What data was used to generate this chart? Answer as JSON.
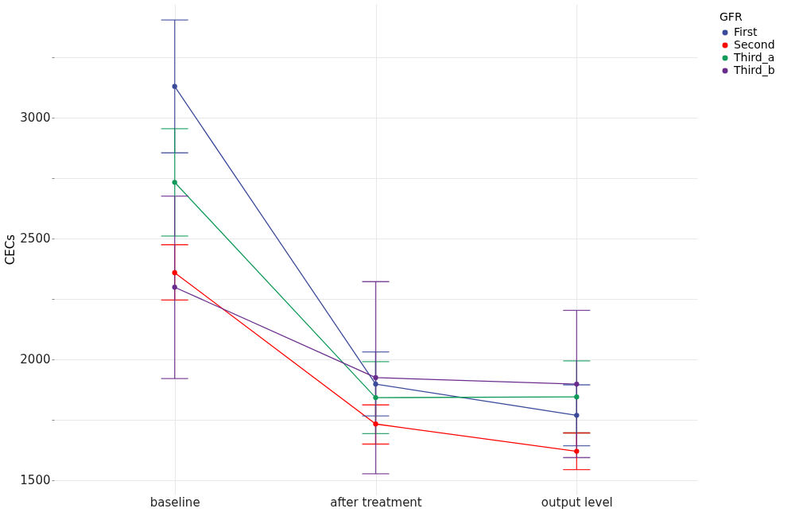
{
  "chart_data": {
    "type": "line",
    "ylabel": "CECs",
    "legend_title": "GFR",
    "categories": [
      "baseline",
      "after treatment",
      "output level"
    ],
    "series": [
      {
        "name": "First",
        "color": "#3b4a9a",
        "values": [
          3129,
          1897,
          1768
        ],
        "errors": [
          [
            2854,
            3404
          ],
          [
            1765,
            2030
          ],
          [
            1642,
            1894
          ]
        ]
      },
      {
        "name": "Second",
        "color": "#ff0000",
        "values": [
          2358,
          1732,
          1619
        ],
        "errors": [
          [
            2245,
            2474
          ],
          [
            1649,
            1811
          ],
          [
            1543,
            1695
          ]
        ]
      },
      {
        "name": "Third_a",
        "color": "#119a5a",
        "values": [
          2732,
          1841,
          1844
        ],
        "errors": [
          [
            2510,
            2954
          ],
          [
            1692,
            1990
          ],
          [
            1695,
            1993
          ]
        ]
      },
      {
        "name": "Third_b",
        "color": "#6a2c8c",
        "values": [
          2298,
          1924,
          1897
        ],
        "errors": [
          [
            1920,
            2675
          ],
          [
            1526,
            2321
          ],
          [
            1593,
            2202
          ]
        ]
      }
    ],
    "ylim": [
      1440,
      3470
    ],
    "yticks": [
      1500,
      {
        "value": 1750,
        "label": null
      },
      2000,
      {
        "value": 2250,
        "label": null
      },
      2500,
      {
        "value": 2750,
        "label": null
      },
      3000,
      {
        "value": 3250,
        "label": null
      }
    ],
    "grid": true,
    "legend": "right",
    "marker": "circle"
  }
}
